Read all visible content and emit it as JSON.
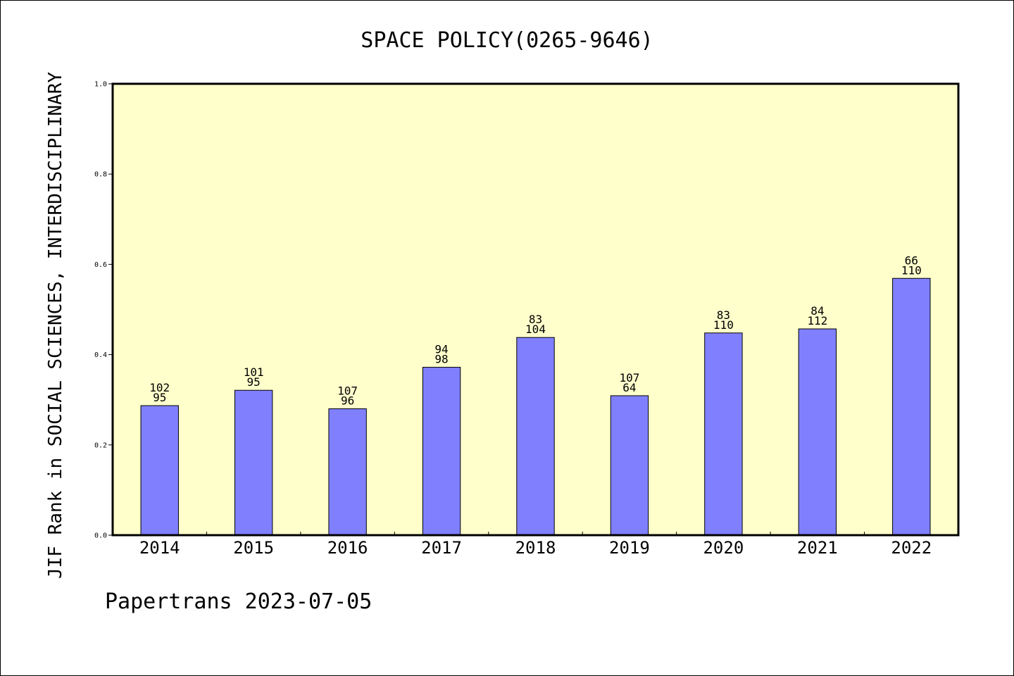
{
  "chart_data": {
    "type": "bar",
    "title": "SPACE POLICY(0265-9646)",
    "ylabel": "JIF Rank in SOCIAL SCIENCES, INTERDISCIPLINARY",
    "xlabel": "",
    "categories": [
      "2014",
      "2015",
      "2016",
      "2017",
      "2018",
      "2019",
      "2020",
      "2021",
      "2022"
    ],
    "values": [
      0.287,
      0.321,
      0.28,
      0.372,
      0.438,
      0.309,
      0.448,
      0.457,
      0.569
    ],
    "rank_labels": [
      "102",
      "101",
      "107",
      "94",
      "83",
      "107",
      "83",
      "84",
      "66"
    ],
    "total_labels": [
      "95",
      "95",
      "96",
      "98",
      "104",
      "64",
      "110",
      "112",
      "110"
    ],
    "ylim": [
      0,
      1.0
    ],
    "yticks": [
      "0.0",
      "0.2",
      "0.4",
      "0.6",
      "0.8",
      "1.0"
    ],
    "grid": false,
    "legend": "none",
    "colors": {
      "bar_fill": "#8080ff",
      "bar_stroke": "#000000",
      "plot_background": "#ffffcc",
      "page_background": "#ffffff"
    }
  },
  "footer": "Papertrans 2023-07-05"
}
